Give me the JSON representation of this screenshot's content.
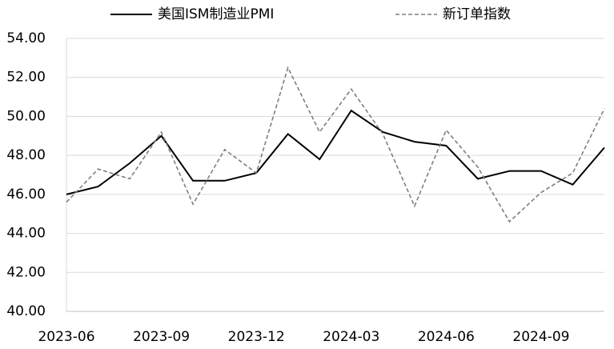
{
  "chart_data": {
    "type": "line",
    "categories": [
      "2023-06",
      null,
      null,
      "2023-09",
      null,
      null,
      "2023-12",
      null,
      null,
      "2024-03",
      null,
      null,
      "2024-06",
      null,
      null,
      "2024-09",
      null,
      null
    ],
    "series": [
      {
        "name": "美国ISM制造业PMI",
        "color": "#000000",
        "dashed": false,
        "values": [
          46.0,
          46.4,
          47.6,
          49.0,
          46.7,
          46.7,
          47.1,
          49.1,
          47.8,
          50.3,
          49.2,
          48.7,
          48.5,
          46.8,
          47.2,
          47.2,
          46.5,
          48.4
        ]
      },
      {
        "name": "新订单指数",
        "color": "#7f7f7f",
        "dashed": true,
        "values": [
          45.6,
          47.3,
          46.8,
          49.2,
          45.5,
          48.3,
          47.1,
          52.5,
          49.2,
          51.4,
          49.1,
          45.4,
          49.3,
          47.4,
          44.6,
          46.1,
          47.1,
          50.4
        ]
      }
    ],
    "ylim": [
      40,
      54
    ],
    "yticks": [
      {
        "value": 40,
        "label": "40.00"
      },
      {
        "value": 42,
        "label": "42.00"
      },
      {
        "value": 44,
        "label": "44.00"
      },
      {
        "value": 46,
        "label": "46.00"
      },
      {
        "value": 48,
        "label": "48.00"
      },
      {
        "value": 50,
        "label": "50.00"
      },
      {
        "value": 52,
        "label": "52.00"
      },
      {
        "value": 54,
        "label": "54.00"
      }
    ],
    "grid": true,
    "legend": "top"
  }
}
